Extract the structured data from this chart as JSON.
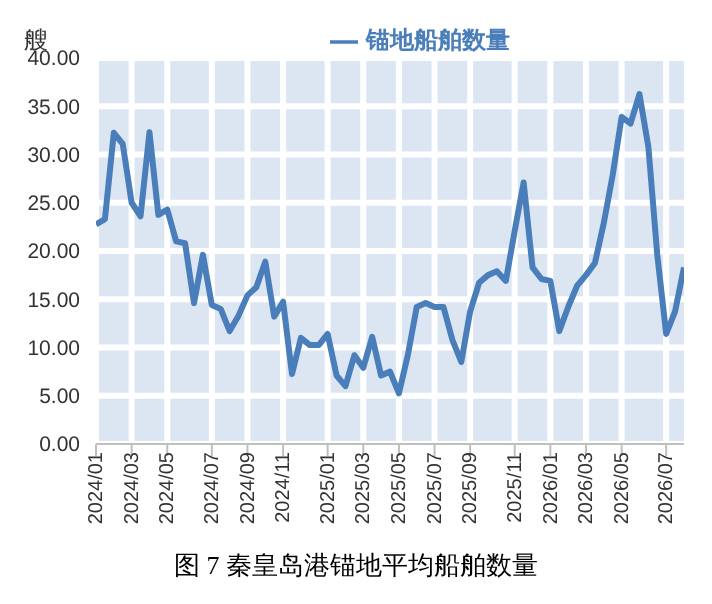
{
  "chart_data": {
    "type": "line",
    "title": "图 7 秦皇岛港锚地平均船舶数量",
    "ylabel": "艘",
    "categories": [
      "2024/01",
      null,
      null,
      null,
      "2024/03",
      null,
      null,
      null,
      "2024/05",
      null,
      null,
      null,
      null,
      "2024/07",
      null,
      null,
      null,
      "2024/09",
      null,
      null,
      null,
      "2024/11",
      null,
      null,
      null,
      null,
      "2025/01",
      null,
      null,
      null,
      "2025/03",
      null,
      null,
      null,
      "2025/05",
      null,
      null,
      null,
      "2025/07",
      null,
      null,
      null,
      "2025/09",
      null,
      null,
      null,
      null,
      "2025/11",
      null,
      null,
      null,
      "2026/01",
      null,
      null,
      null,
      "2026/03",
      null,
      null,
      null,
      "2026/05",
      null,
      null,
      null,
      null,
      "2026/07",
      null,
      null
    ],
    "series": [
      {
        "name": "锚地船舶数量",
        "color": "#4a7ebb",
        "values": [
          22.75,
          23.3,
          32.25,
          31.1,
          25,
          23.6,
          32.3,
          23.75,
          24.3,
          21,
          20.8,
          14.6,
          19.6,
          14.4,
          14,
          11.7,
          13.3,
          15.4,
          16.25,
          18.9,
          13.2,
          14.75,
          7.25,
          11,
          10.25,
          10.25,
          11.4,
          7.1,
          6,
          9.2,
          7.9,
          11.1,
          7.1,
          7.5,
          5.25,
          9.2,
          14.2,
          14.6,
          14.2,
          14.2,
          10.8,
          8.5,
          13.75,
          16.7,
          17.5,
          17.9,
          16.9,
          22.1,
          27.1,
          18.3,
          17.1,
          16.9,
          11.7,
          14.2,
          16.4,
          17.5,
          18.75,
          22.9,
          27.9,
          33.9,
          33.2,
          36.25,
          30.8,
          19.6,
          11.4,
          13.75,
          18.3
        ]
      }
    ],
    "ylim": [
      0,
      40
    ],
    "yticks": [
      {
        "value": 0,
        "label": "0.00"
      },
      {
        "value": 5,
        "label": "5.00"
      },
      {
        "value": 10,
        "label": "10.00"
      },
      {
        "value": 15,
        "label": "15.00"
      },
      {
        "value": 20,
        "label": "20.00"
      },
      {
        "value": 25,
        "label": "25.00"
      },
      {
        "value": 30,
        "label": "30.00"
      },
      {
        "value": 35,
        "label": "35.00"
      },
      {
        "value": 40,
        "label": "40.00"
      }
    ],
    "grid": true,
    "legend": "top",
    "marker": "none",
    "line_style": "solid"
  }
}
